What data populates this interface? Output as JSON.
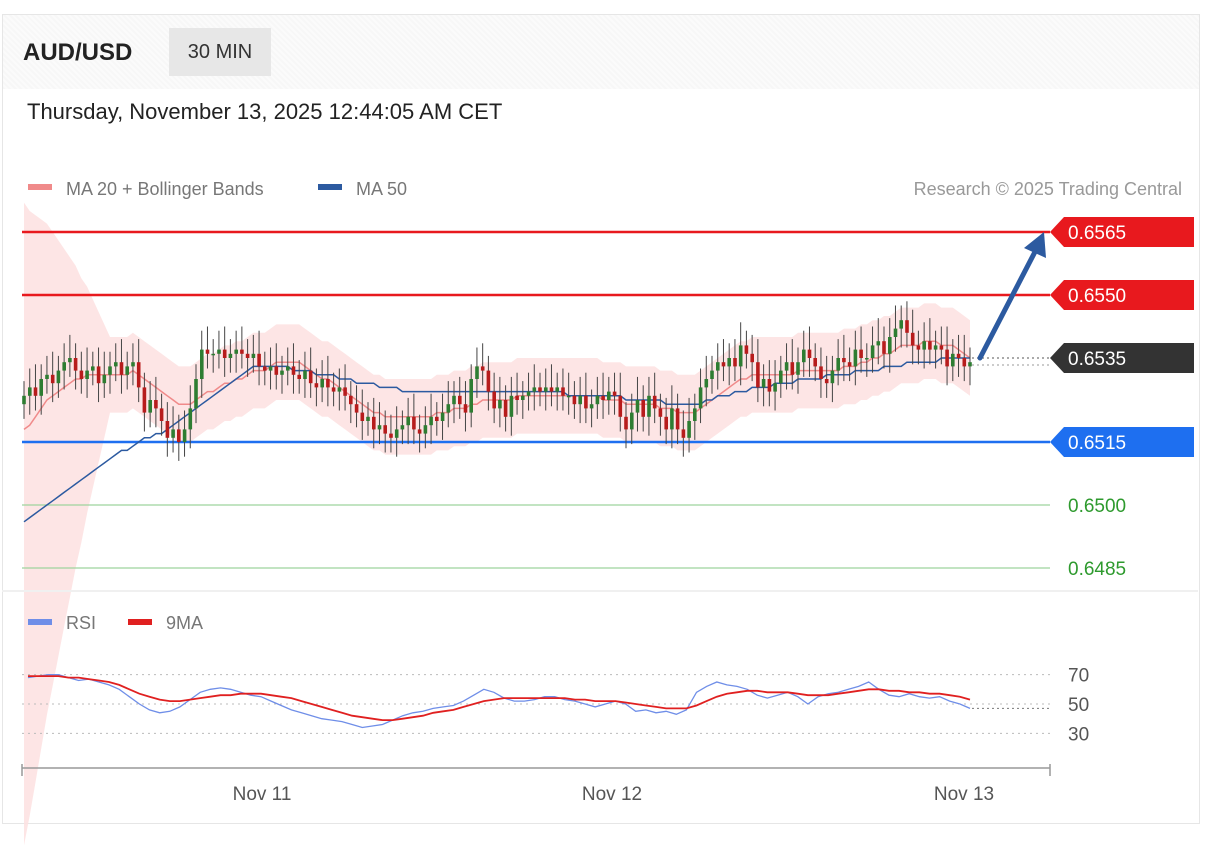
{
  "header": {
    "symbol": "AUD/USD",
    "interval": "30 MIN",
    "datetime": "Thursday, November 13, 2025 12:44:05 AM CET"
  },
  "legend": {
    "ma20_label": "MA 20 + Bollinger Bands",
    "ma50_label": "MA 50",
    "ma20_color": "#f08a8a",
    "ma50_color": "#2c5aa0"
  },
  "credit": "Research © 2025 Trading Central",
  "rsi_legend": {
    "rsi_label": "RSI",
    "ma_label": "9MA",
    "rsi_color": "#6f8ee8",
    "ma_color": "#e02020"
  },
  "chart_data": [
    {
      "type": "candlestick",
      "ylim": [
        0.6473,
        0.6573
      ],
      "x_ticks": [
        "Nov 11",
        "Nov 12",
        "Nov 13"
      ],
      "levels": [
        {
          "value": 0.6565,
          "label": "0.6565",
          "kind": "resistance",
          "color": "#e8191e"
        },
        {
          "value": 0.655,
          "label": "0.6550",
          "kind": "resistance",
          "color": "#e8191e"
        },
        {
          "value": 0.6535,
          "label": "0.6535",
          "kind": "pivot",
          "color": "#333333"
        },
        {
          "value": 0.6515,
          "label": "0.6515",
          "kind": "support",
          "color": "#1e6ff0"
        },
        {
          "value": 0.65,
          "label": "0.6500",
          "kind": "target",
          "color": "#2e9a2e"
        },
        {
          "value": 0.6485,
          "label": "0.6485",
          "kind": "target",
          "color": "#2e9a2e"
        }
      ],
      "forecast_arrow": {
        "from": 0.6535,
        "to": 0.6565,
        "color": "#2c5aa0"
      },
      "close_series": [
        0.6526,
        0.6528,
        0.6526,
        0.653,
        0.6531,
        0.6529,
        0.6532,
        0.6534,
        0.6535,
        0.6532,
        0.653,
        0.6532,
        0.6533,
        0.6529,
        0.6531,
        0.6533,
        0.6534,
        0.6531,
        0.6533,
        0.6534,
        0.6528,
        0.6522,
        0.6525,
        0.6523,
        0.652,
        0.6516,
        0.6518,
        0.6515,
        0.6518,
        0.6523,
        0.653,
        0.6537,
        0.6536,
        0.6536,
        0.6537,
        0.6535,
        0.6536,
        0.6537,
        0.6536,
        0.6535,
        0.6536,
        0.6533,
        0.6532,
        0.6533,
        0.6531,
        0.6532,
        0.6533,
        0.6531,
        0.653,
        0.6532,
        0.6529,
        0.6528,
        0.653,
        0.6528,
        0.6527,
        0.6528,
        0.6526,
        0.6524,
        0.6522,
        0.652,
        0.6521,
        0.6518,
        0.6519,
        0.6517,
        0.6516,
        0.6518,
        0.6519,
        0.6521,
        0.6518,
        0.6517,
        0.6519,
        0.6521,
        0.652,
        0.6522,
        0.6524,
        0.6526,
        0.6524,
        0.6522,
        0.653,
        0.6533,
        0.6532,
        0.6527,
        0.6523,
        0.6525,
        0.6521,
        0.6526,
        0.6525,
        0.6526,
        0.6527,
        0.6528,
        0.6527,
        0.6528,
        0.6527,
        0.6528,
        0.6526,
        0.6526,
        0.6524,
        0.6526,
        0.6523,
        0.6524,
        0.6526,
        0.6525,
        0.6527,
        0.6526,
        0.6521,
        0.6518,
        0.6522,
        0.6525,
        0.6521,
        0.6526,
        0.6523,
        0.6521,
        0.6518,
        0.6523,
        0.6518,
        0.6516,
        0.652,
        0.6523,
        0.6528,
        0.653,
        0.6532,
        0.6534,
        0.6533,
        0.6535,
        0.6533,
        0.6538,
        0.6536,
        0.6534,
        0.6528,
        0.653,
        0.6527,
        0.6529,
        0.6532,
        0.6534,
        0.6531,
        0.6534,
        0.6537,
        0.6535,
        0.6533,
        0.653,
        0.6529,
        0.6532,
        0.6535,
        0.6534,
        0.6533,
        0.6537,
        0.6535,
        0.6535,
        0.6538,
        0.6539,
        0.6536,
        0.654,
        0.6542,
        0.6544,
        0.6541,
        0.6538,
        0.6537,
        0.6539,
        0.6537,
        0.6538,
        0.6537,
        0.6533,
        0.6536,
        0.6535,
        0.6533,
        0.6534
      ],
      "ma20": [
        0.6518,
        0.6519,
        0.6521,
        0.6523,
        0.6525,
        0.6526,
        0.6527,
        0.6528,
        0.6529,
        0.653,
        0.653,
        0.6531,
        0.6531,
        0.6531,
        0.6531,
        0.6531,
        0.6531,
        0.6531,
        0.6531,
        0.6532,
        0.6531,
        0.653,
        0.6529,
        0.6528,
        0.6527,
        0.6526,
        0.6525,
        0.6524,
        0.6524,
        0.6524,
        0.6525,
        0.6526,
        0.6527,
        0.6527,
        0.6528,
        0.6529,
        0.6529,
        0.653,
        0.653,
        0.6531,
        0.6532,
        0.6532,
        0.6532,
        0.6533,
        0.6534,
        0.6534,
        0.6534,
        0.6534,
        0.6534,
        0.6533,
        0.6532,
        0.6531,
        0.653,
        0.653,
        0.6529,
        0.6528,
        0.6527,
        0.6526,
        0.6525,
        0.6524,
        0.6523,
        0.6522,
        0.6522,
        0.6521,
        0.6521,
        0.6521,
        0.6521,
        0.6521,
        0.6521,
        0.6521,
        0.6521,
        0.6521,
        0.6522,
        0.6522,
        0.6522,
        0.6523,
        0.6523,
        0.6523,
        0.6524,
        0.6524,
        0.6525,
        0.6525,
        0.6525,
        0.6525,
        0.6525,
        0.6525,
        0.6526,
        0.6526,
        0.6526,
        0.6526,
        0.6526,
        0.6526,
        0.6526,
        0.6526,
        0.6526,
        0.6526,
        0.6526,
        0.6526,
        0.6526,
        0.6526,
        0.6526,
        0.6525,
        0.6525,
        0.6525,
        0.6525,
        0.6524,
        0.6524,
        0.6524,
        0.6524,
        0.6524,
        0.6524,
        0.6523,
        0.6523,
        0.6523,
        0.6522,
        0.6522,
        0.6522,
        0.6522,
        0.6523,
        0.6524,
        0.6525,
        0.6526,
        0.6527,
        0.6528,
        0.6529,
        0.653,
        0.653,
        0.6531,
        0.6531,
        0.6531,
        0.6531,
        0.6531,
        0.6531,
        0.6531,
        0.6531,
        0.6532,
        0.6532,
        0.6532,
        0.6532,
        0.6532,
        0.6532,
        0.6532,
        0.6532,
        0.6533,
        0.6533,
        0.6533,
        0.6534,
        0.6534,
        0.6535,
        0.6535,
        0.6536,
        0.6536,
        0.6537,
        0.6538,
        0.6538,
        0.6538,
        0.6538,
        0.6539,
        0.6539,
        0.6539,
        0.6538,
        0.6538,
        0.6538,
        0.6537,
        0.6536,
        0.6535
      ],
      "ma50": [
        0.6496,
        0.6497,
        0.6498,
        0.6499,
        0.65,
        0.6501,
        0.6502,
        0.6503,
        0.6504,
        0.6505,
        0.6506,
        0.6507,
        0.6508,
        0.6509,
        0.651,
        0.6511,
        0.6512,
        0.6513,
        0.6513,
        0.6514,
        0.6515,
        0.6516,
        0.6516,
        0.6517,
        0.6517,
        0.6518,
        0.6519,
        0.652,
        0.6521,
        0.6522,
        0.6523,
        0.6524,
        0.6525,
        0.6526,
        0.6527,
        0.6528,
        0.6529,
        0.653,
        0.6531,
        0.6532,
        0.6533,
        0.6533,
        0.6533,
        0.6533,
        0.6533,
        0.6533,
        0.6533,
        0.6532,
        0.6532,
        0.6532,
        0.6532,
        0.6531,
        0.6531,
        0.6531,
        0.6531,
        0.653,
        0.653,
        0.653,
        0.6529,
        0.6529,
        0.6529,
        0.6529,
        0.6528,
        0.6528,
        0.6528,
        0.6528,
        0.6527,
        0.6527,
        0.6527,
        0.6527,
        0.6527,
        0.6527,
        0.6527,
        0.6527,
        0.6527,
        0.6527,
        0.6527,
        0.6527,
        0.6527,
        0.6527,
        0.6527,
        0.6527,
        0.6527,
        0.6527,
        0.6527,
        0.6527,
        0.6527,
        0.6527,
        0.6527,
        0.6527,
        0.6527,
        0.6527,
        0.6527,
        0.6527,
        0.6527,
        0.6526,
        0.6526,
        0.6526,
        0.6526,
        0.6526,
        0.6526,
        0.6526,
        0.6526,
        0.6526,
        0.6526,
        0.6525,
        0.6525,
        0.6525,
        0.6525,
        0.6525,
        0.6525,
        0.6525,
        0.6524,
        0.6524,
        0.6524,
        0.6524,
        0.6524,
        0.6524,
        0.6524,
        0.6525,
        0.6525,
        0.6526,
        0.6526,
        0.6526,
        0.6527,
        0.6527,
        0.6527,
        0.6528,
        0.6528,
        0.6528,
        0.6528,
        0.6529,
        0.6529,
        0.6529,
        0.6529,
        0.653,
        0.653,
        0.653,
        0.653,
        0.653,
        0.6531,
        0.6531,
        0.6531,
        0.6531,
        0.6531,
        0.6532,
        0.6532,
        0.6532,
        0.6532,
        0.6532,
        0.6533,
        0.6533,
        0.6533,
        0.6533,
        0.6534,
        0.6534,
        0.6534,
        0.6534,
        0.6534,
        0.6534,
        0.6535,
        0.6535,
        0.6535,
        0.6535,
        0.6535,
        0.6535
      ]
    },
    {
      "type": "line",
      "ylim": [
        20,
        80
      ],
      "y_ticks": [
        "70",
        "50",
        "30"
      ],
      "series": [
        {
          "name": "RSI",
          "values": [
            68,
            69,
            70,
            70,
            68,
            66,
            67,
            65,
            63,
            60,
            55,
            50,
            46,
            44,
            45,
            48,
            53,
            58,
            60,
            61,
            60,
            58,
            56,
            55,
            52,
            49,
            46,
            44,
            42,
            40,
            39,
            38,
            36,
            34,
            35,
            36,
            39,
            42,
            44,
            45,
            47,
            48,
            49,
            52,
            56,
            60,
            58,
            54,
            52,
            52,
            53,
            55,
            55,
            53,
            52,
            50,
            48,
            50,
            52,
            50,
            45,
            46,
            44,
            45,
            43,
            46,
            58,
            62,
            65,
            63,
            62,
            60,
            56,
            54,
            56,
            58,
            55,
            50,
            55,
            57,
            58,
            60,
            62,
            65,
            60,
            56,
            55,
            57,
            55,
            54,
            55,
            52,
            50,
            47
          ]
        },
        {
          "name": "9MA",
          "values": [
            69,
            69,
            69,
            69,
            68,
            68,
            67,
            66,
            65,
            63,
            60,
            57,
            55,
            53,
            52,
            52,
            53,
            54,
            55,
            56,
            56,
            57,
            57,
            57,
            56,
            55,
            54,
            52,
            50,
            48,
            46,
            44,
            42,
            41,
            40,
            39,
            39,
            40,
            41,
            42,
            44,
            45,
            46,
            48,
            50,
            52,
            53,
            54,
            54,
            54,
            54,
            54,
            54,
            54,
            53,
            53,
            52,
            52,
            52,
            51,
            50,
            49,
            48,
            47,
            47,
            47,
            49,
            52,
            55,
            57,
            58,
            59,
            59,
            58,
            58,
            58,
            57,
            56,
            56,
            56,
            57,
            58,
            59,
            60,
            60,
            59,
            59,
            58,
            58,
            57,
            57,
            56,
            55,
            53
          ]
        }
      ]
    }
  ]
}
